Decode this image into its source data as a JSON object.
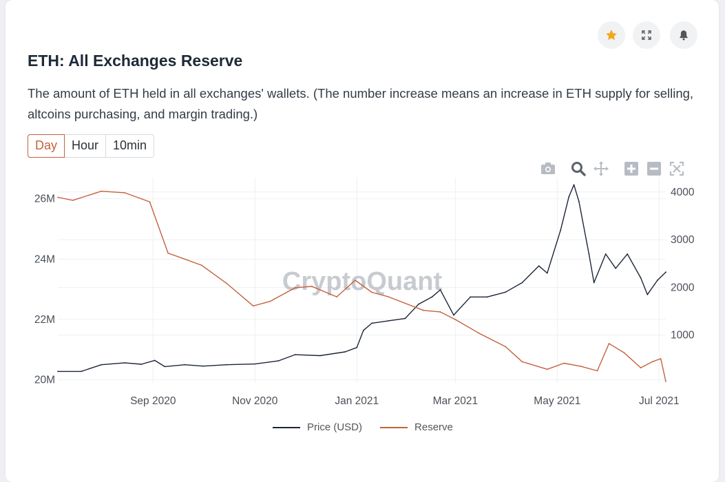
{
  "title": "ETH: All Exchanges Reserve",
  "description": "The amount of ETH held in all exchanges' wallets. (The number increase means an increase in ETH supply for selling, altcoins purchasing, and margin trading.)",
  "tabs": [
    "Day",
    "Hour",
    "10min"
  ],
  "active_tab": "Day",
  "icons": {
    "favorite": "star-icon",
    "expand": "expand-icon",
    "alert": "bell-icon",
    "modebar": [
      "camera-icon",
      "zoom-icon",
      "pan-icon",
      "zoom-in-icon",
      "zoom-out-icon",
      "autoscale-icon"
    ]
  },
  "colors": {
    "price": "#1b2436",
    "reserve": "#c4603c",
    "star": "#f2a71b"
  },
  "watermark": "CryptoQuant",
  "chart_data": {
    "type": "line",
    "x_ticks": [
      "Sep 2020",
      "Nov 2020",
      "Jan 2021",
      "Mar 2021",
      "May 2021",
      "Jul 2021"
    ],
    "y_left_ticks": [
      "20M",
      "22M",
      "24M",
      "26M"
    ],
    "y_right_ticks": [
      "1000",
      "2000",
      "3000",
      "4000"
    ],
    "y_left_range": [
      19.9,
      26.7
    ],
    "y_right_range": [
      0,
      4300
    ],
    "x_range": [
      "2020-07-06",
      "2021-07-05"
    ],
    "grid": true,
    "legend_position": "bottom-center",
    "series": [
      {
        "name": "Price (USD)",
        "axis": "right",
        "points": [
          [
            "2020-07-06",
            240
          ],
          [
            "2020-07-20",
            240
          ],
          [
            "2020-08-01",
            380
          ],
          [
            "2020-08-15",
            420
          ],
          [
            "2020-08-25",
            390
          ],
          [
            "2020-09-02",
            470
          ],
          [
            "2020-09-08",
            340
          ],
          [
            "2020-09-20",
            380
          ],
          [
            "2020-10-01",
            350
          ],
          [
            "2020-10-15",
            380
          ],
          [
            "2020-11-01",
            395
          ],
          [
            "2020-11-15",
            460
          ],
          [
            "2020-11-25",
            590
          ],
          [
            "2020-12-10",
            570
          ],
          [
            "2020-12-25",
            650
          ],
          [
            "2021-01-01",
            740
          ],
          [
            "2021-01-05",
            1100
          ],
          [
            "2021-01-10",
            1250
          ],
          [
            "2021-01-20",
            1300
          ],
          [
            "2021-01-30",
            1350
          ],
          [
            "2021-02-07",
            1650
          ],
          [
            "2021-02-15",
            1800
          ],
          [
            "2021-02-20",
            1950
          ],
          [
            "2021-02-28",
            1420
          ],
          [
            "2021-03-10",
            1800
          ],
          [
            "2021-03-20",
            1800
          ],
          [
            "2021-03-31",
            1900
          ],
          [
            "2021-04-10",
            2100
          ],
          [
            "2021-04-20",
            2450
          ],
          [
            "2021-04-25",
            2300
          ],
          [
            "2021-05-03",
            3200
          ],
          [
            "2021-05-08",
            3900
          ],
          [
            "2021-05-11",
            4150
          ],
          [
            "2021-05-14",
            3800
          ],
          [
            "2021-05-20",
            2700
          ],
          [
            "2021-05-23",
            2100
          ],
          [
            "2021-05-30",
            2700
          ],
          [
            "2021-06-05",
            2400
          ],
          [
            "2021-06-12",
            2700
          ],
          [
            "2021-06-20",
            2200
          ],
          [
            "2021-06-24",
            1850
          ],
          [
            "2021-06-30",
            2150
          ],
          [
            "2021-07-05",
            2320
          ]
        ]
      },
      {
        "name": "Reserve",
        "axis": "left",
        "points": [
          [
            "2020-07-06",
            26.05
          ],
          [
            "2020-07-15",
            25.95
          ],
          [
            "2020-08-01",
            26.25
          ],
          [
            "2020-08-15",
            26.2
          ],
          [
            "2020-08-30",
            25.9
          ],
          [
            "2020-09-10",
            24.2
          ],
          [
            "2020-09-30",
            23.8
          ],
          [
            "2020-10-15",
            23.2
          ],
          [
            "2020-10-31",
            22.45
          ],
          [
            "2020-11-10",
            22.6
          ],
          [
            "2020-11-25",
            23.05
          ],
          [
            "2020-12-05",
            23.1
          ],
          [
            "2020-12-20",
            22.75
          ],
          [
            "2020-12-31",
            23.3
          ],
          [
            "2021-01-10",
            22.9
          ],
          [
            "2021-01-20",
            22.75
          ],
          [
            "2021-02-10",
            22.3
          ],
          [
            "2021-02-20",
            22.25
          ],
          [
            "2021-03-01",
            22.0
          ],
          [
            "2021-03-15",
            21.55
          ],
          [
            "2021-03-31",
            21.1
          ],
          [
            "2021-04-10",
            20.6
          ],
          [
            "2021-04-25",
            20.35
          ],
          [
            "2021-05-05",
            20.55
          ],
          [
            "2021-05-15",
            20.45
          ],
          [
            "2021-05-25",
            20.3
          ],
          [
            "2021-06-01",
            21.2
          ],
          [
            "2021-06-10",
            20.9
          ],
          [
            "2021-06-20",
            20.4
          ],
          [
            "2021-06-27",
            20.6
          ],
          [
            "2021-07-02",
            20.7
          ],
          [
            "2021-07-05",
            19.95
          ]
        ]
      }
    ]
  }
}
